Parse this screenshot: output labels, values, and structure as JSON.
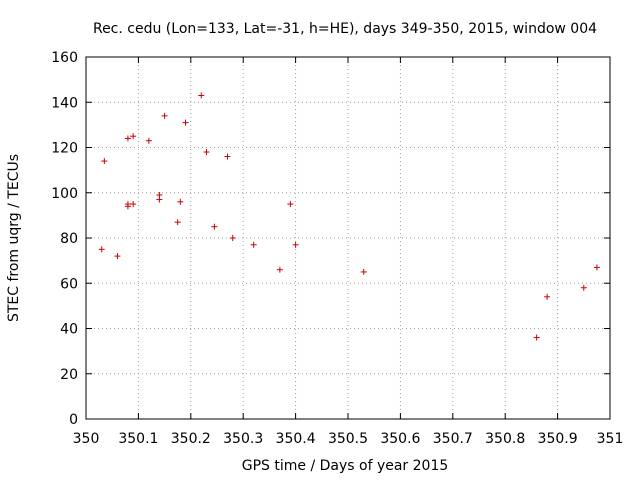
{
  "chart_data": {
    "type": "scatter",
    "title": "Rec. cedu (Lon=133, Lat=-31, h=HE), days 349-350, 2015, window 004",
    "xlabel": "GPS time / Days of year 2015",
    "ylabel": "STEC from uqrg / TECUs",
    "xlim": [
      350,
      351
    ],
    "ylim": [
      0,
      160
    ],
    "x_ticks": [
      350,
      350.1,
      350.2,
      350.3,
      350.4,
      350.5,
      350.6,
      350.7,
      350.8,
      350.9,
      351
    ],
    "x_tick_labels": [
      "350",
      "350.1",
      "350.2",
      "350.3",
      "350.4",
      "350.5",
      "350.6",
      "350.7",
      "350.8",
      "350.9",
      "351"
    ],
    "y_ticks": [
      0,
      20,
      40,
      60,
      80,
      100,
      120,
      140,
      160
    ],
    "y_tick_labels": [
      "0",
      "20",
      "40",
      "60",
      "80",
      "100",
      "120",
      "140",
      "160"
    ],
    "grid": true,
    "legend": "none",
    "marker": "plus",
    "color": "#cc0000",
    "series": [
      {
        "points": [
          [
            350.035,
            114
          ],
          [
            350.03,
            75
          ],
          [
            350.06,
            72
          ],
          [
            350.08,
            124
          ],
          [
            350.09,
            125
          ],
          [
            350.12,
            123
          ],
          [
            350.08,
            95
          ],
          [
            350.08,
            94
          ],
          [
            350.09,
            95
          ],
          [
            350.14,
            99
          ],
          [
            350.14,
            97
          ],
          [
            350.15,
            134
          ],
          [
            350.18,
            96
          ],
          [
            350.175,
            87
          ],
          [
            350.19,
            131
          ],
          [
            350.22,
            143
          ],
          [
            350.23,
            118
          ],
          [
            350.27,
            116
          ],
          [
            350.245,
            85
          ],
          [
            350.28,
            80
          ],
          [
            350.39,
            95
          ],
          [
            350.32,
            77
          ],
          [
            350.4,
            77
          ],
          [
            350.975,
            67
          ],
          [
            350.37,
            66
          ],
          [
            350.53,
            65
          ],
          [
            350.88,
            54
          ],
          [
            350.95,
            58
          ],
          [
            350.86,
            36
          ]
        ]
      }
    ]
  }
}
